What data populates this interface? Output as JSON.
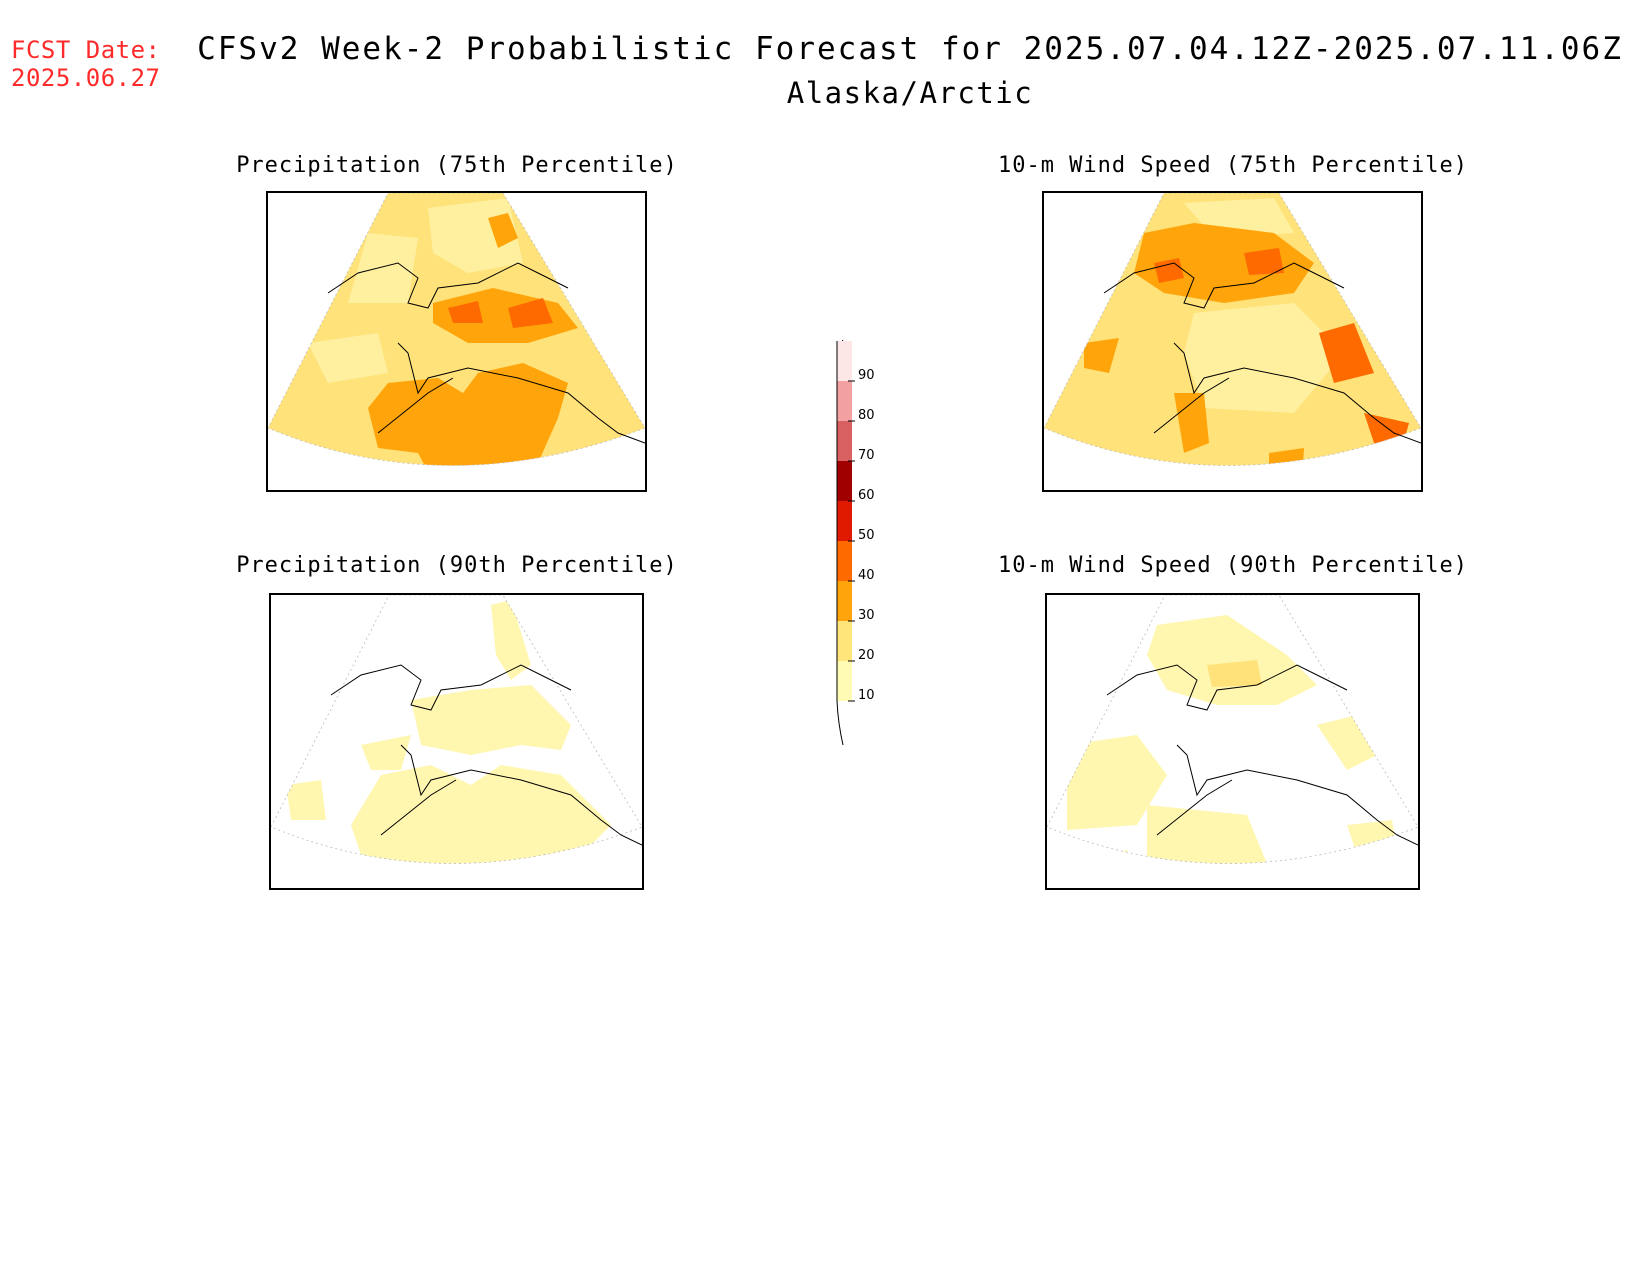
{
  "header": {
    "fcst_label": "FCST Date:",
    "fcst_date": "2025.06.27",
    "title": "CFSv2 Week-2 Probabilistic Forecast for 2025.07.04.12Z-2025.07.11.06Z",
    "region": "Alaska/Arctic"
  },
  "panels": [
    {
      "title": "Precipitation (75th Percentile)"
    },
    {
      "title": "10-m Wind Speed (75th Percentile)"
    },
    {
      "title": "Precipitation (90th Percentile)"
    },
    {
      "title": "10-m Wind Speed (90th Percentile)"
    }
  ],
  "colorbar": {
    "levels": [
      10,
      20,
      30,
      40,
      50,
      60,
      70,
      80,
      90
    ],
    "labels": [
      "10",
      "20",
      "30",
      "40",
      "50",
      "60",
      "70",
      "80",
      "90"
    ],
    "colors": [
      "#fffbb4",
      "#ffe57a",
      "#ffa40a",
      "#ff6a00",
      "#e01a00",
      "#a00000",
      "#d86060",
      "#f2a0a0",
      "#fde6e6"
    ]
  },
  "colors": {
    "fcst": "#ff2a2a",
    "level_10_20": "#fff6b0",
    "level_20_30": "#ffe27a",
    "level_30_40": "#ffa40a",
    "level_40_50": "#ff6a00"
  }
}
